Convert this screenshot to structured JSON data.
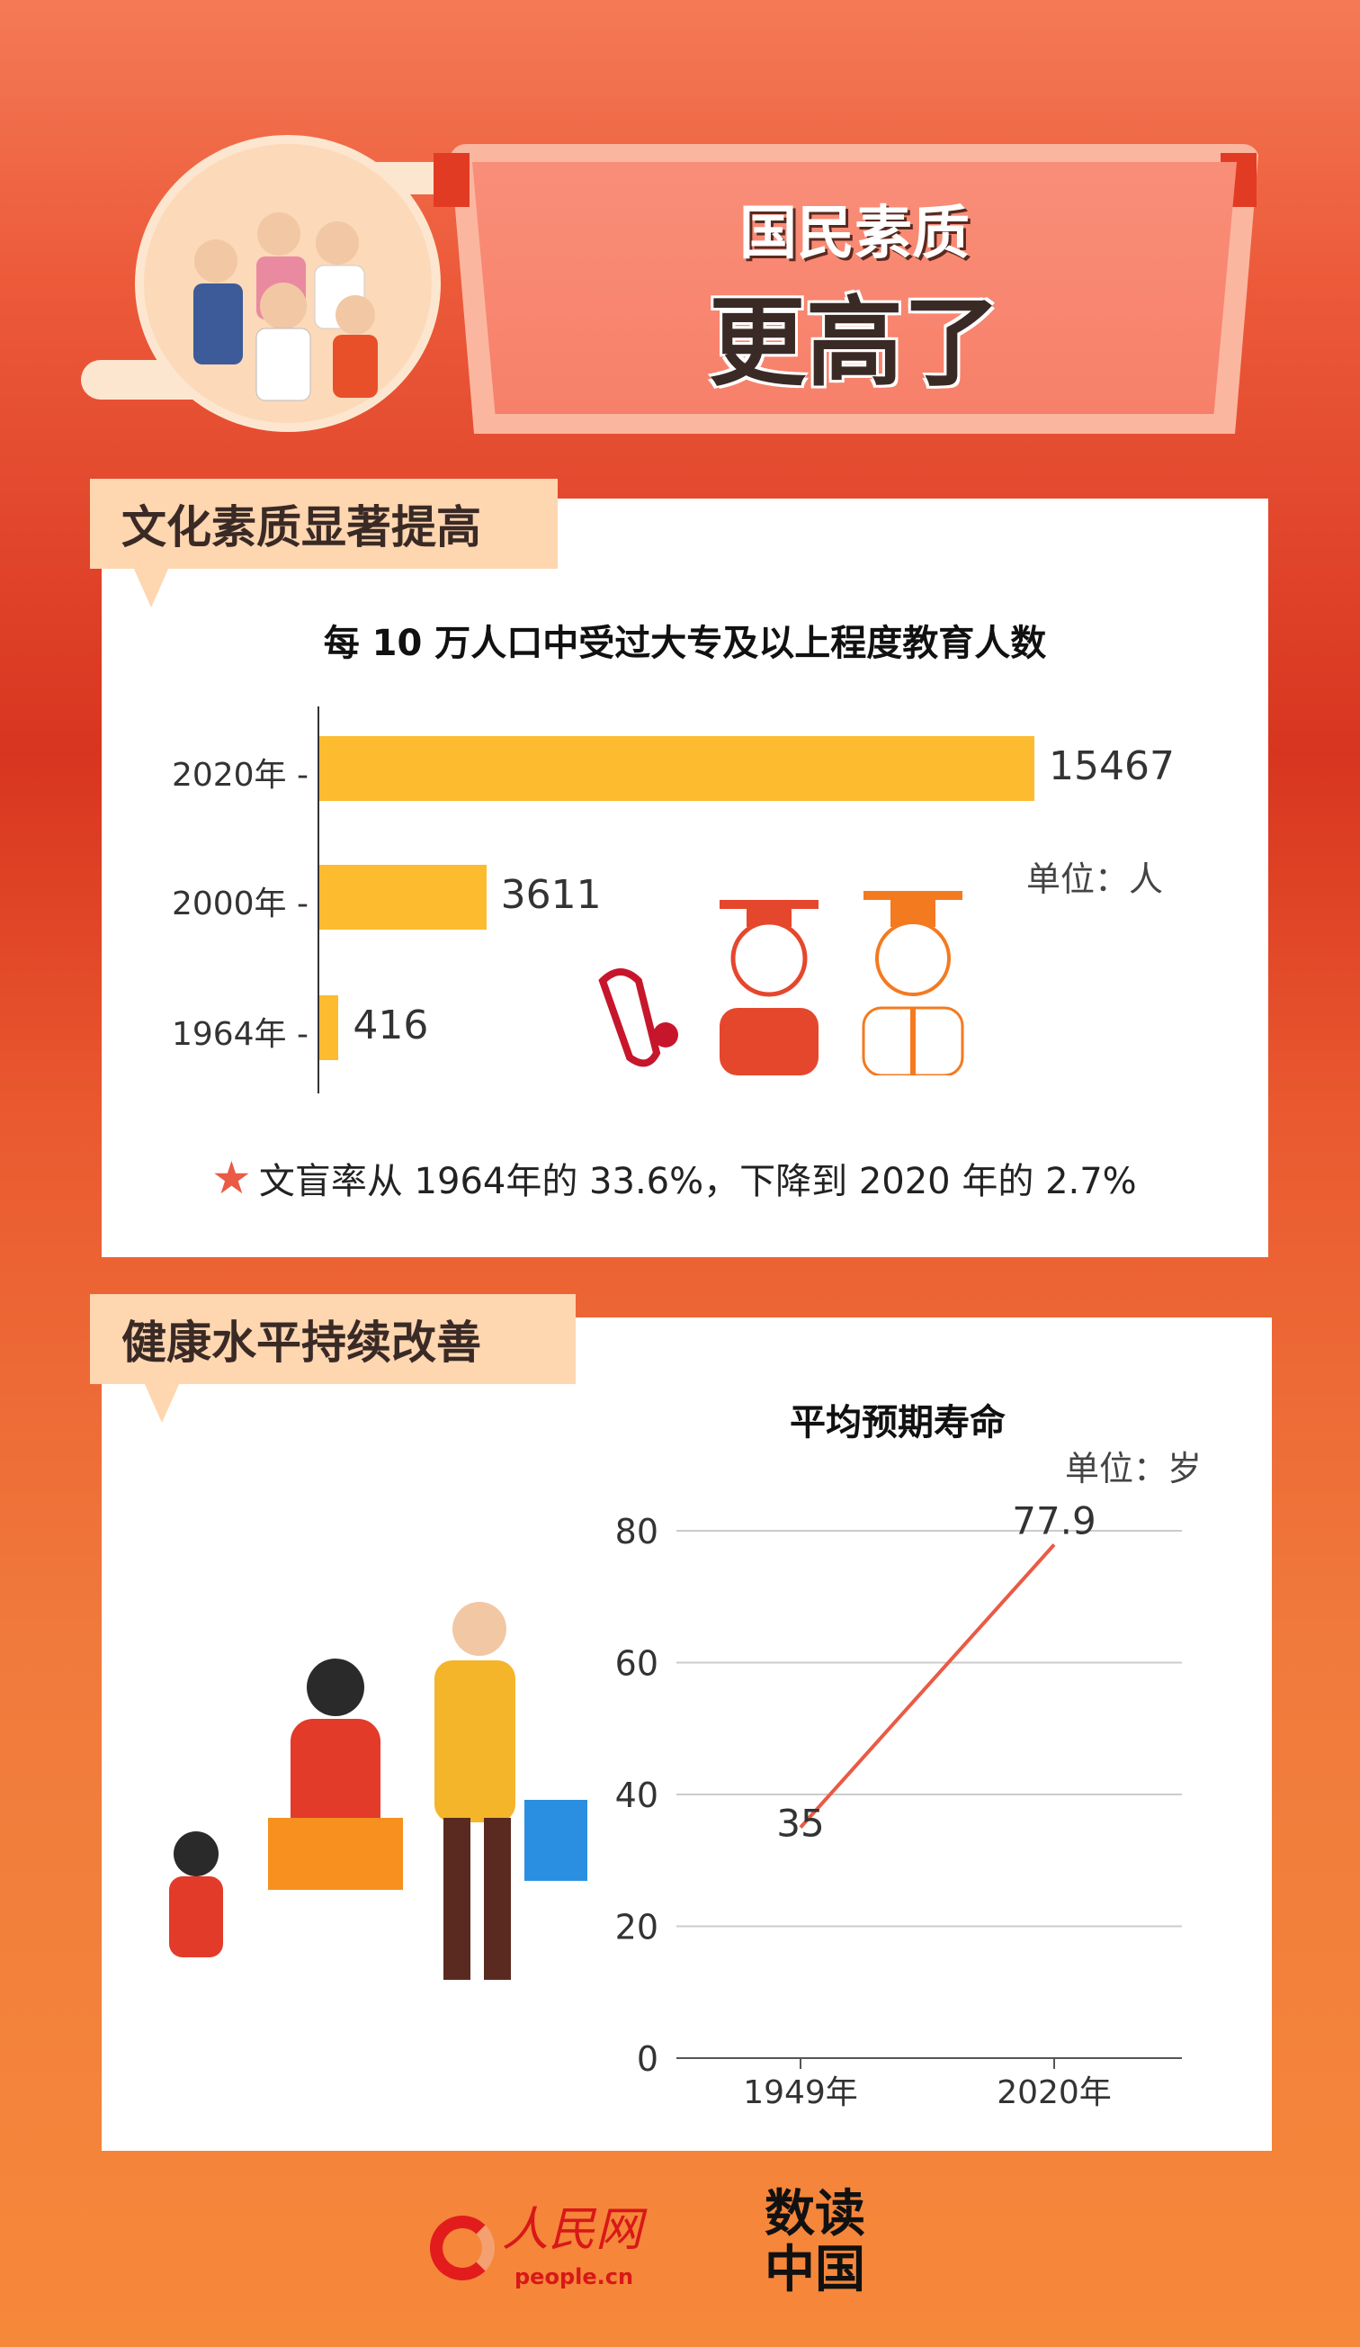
{
  "header": {
    "title_line1": "国民素质",
    "title_line2": "更高了"
  },
  "section1": {
    "label": "文化素质显著提高",
    "note_icon": "star-icon",
    "note": "文盲率从 1964年的 33.6%，下降到 2020 年的 2.7%"
  },
  "section2": {
    "label": "健康水平持续改善"
  },
  "chart_data": [
    {
      "type": "bar",
      "orientation": "horizontal",
      "title": "每 10 万人口中受过大专及以上程度教育人数",
      "unit": "单位：人",
      "categories": [
        "2020年",
        "2000年",
        "1964年"
      ],
      "values": [
        15467,
        3611,
        416
      ],
      "value_labels": [
        "15467",
        "3611",
        "416"
      ],
      "color": "#fdbb30"
    },
    {
      "type": "line",
      "title": "平均预期寿命",
      "unit": "单位：岁",
      "x": [
        "1949年",
        "2020年"
      ],
      "y": [
        35,
        77.9
      ],
      "value_labels": [
        "35",
        "77.9"
      ],
      "ylim": [
        0,
        80
      ],
      "yticks": [
        "0",
        "20",
        "40",
        "60",
        "80"
      ],
      "grid": true,
      "color": "#ea5a45"
    }
  ],
  "footer": {
    "logo1": "人民网",
    "logo1_sub": "people.cn",
    "logo2": "数读中国"
  }
}
